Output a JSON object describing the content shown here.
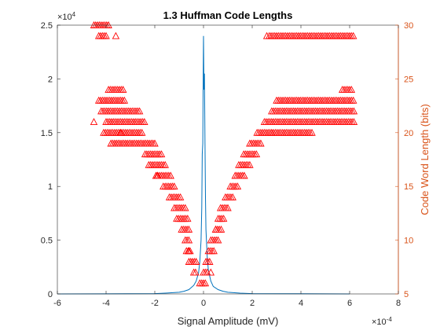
{
  "chart_data": {
    "type": "line+scatter",
    "title": "1.3 Huffman Code Lengths",
    "xlabel": "Signal Amplitude (mV)",
    "ylabel_left": "",
    "ylabel_right": "Code Word Length (bits)",
    "x_exponent_label": "×10",
    "x_exponent_power": "-4",
    "y_exponent_label": "×10",
    "y_exponent_power": "4",
    "xlim": [
      -6,
      8
    ],
    "ylim_left": [
      0,
      2.5
    ],
    "ylim_right": [
      5,
      30
    ],
    "x_ticks": [
      "-6",
      "-4",
      "-2",
      "0",
      "2",
      "4",
      "6",
      "8"
    ],
    "y_left_ticks": [
      "0",
      "0.5",
      "1",
      "1.5",
      "2",
      "2.5"
    ],
    "y_right_ticks": [
      "5",
      "10",
      "15",
      "20",
      "25",
      "30"
    ],
    "colors": {
      "histogram": "#0072bd",
      "codes": "#ff0000",
      "right_axis": "#d95319"
    },
    "histogram": {
      "x": [
        -6.0,
        -2.0,
        -1.5,
        -1.0,
        -0.8,
        -0.6,
        -0.4,
        -0.3,
        -0.2,
        -0.15,
        -0.1,
        -0.07,
        -0.05,
        -0.03,
        -0.01,
        0.0,
        0.02,
        0.04,
        0.06,
        0.08,
        0.1,
        0.15,
        0.2,
        0.3,
        0.4,
        0.6,
        0.8,
        1.0,
        1.5,
        2.0,
        6.0
      ],
      "y": [
        0.0,
        0.003,
        0.008,
        0.015,
        0.025,
        0.04,
        0.08,
        0.12,
        0.2,
        0.3,
        0.5,
        0.8,
        1.3,
        1.4,
        2.1,
        2.4,
        1.9,
        2.05,
        1.4,
        0.9,
        0.6,
        0.35,
        0.22,
        0.12,
        0.07,
        0.04,
        0.025,
        0.015,
        0.007,
        0.003,
        0.0
      ]
    },
    "codes": {
      "bands": [
        {
          "length": 6,
          "ranges": [
            [
              -0.15,
              0.1
            ]
          ]
        },
        {
          "length": 7,
          "ranges": [
            [
              -0.4,
              -0.3
            ],
            [
              0.0,
              0.15
            ]
          ]
        },
        {
          "length": 8,
          "ranges": [
            [
              -0.6,
              -0.3
            ],
            [
              0.1,
              0.3
            ]
          ]
        },
        {
          "length": 9,
          "ranges": [
            [
              -0.7,
              -0.55
            ],
            [
              0.2,
              0.45
            ]
          ]
        },
        {
          "length": 10,
          "ranges": [
            [
              -0.75,
              -0.6
            ],
            [
              0.3,
              0.6
            ]
          ]
        },
        {
          "length": 11,
          "ranges": [
            [
              -0.9,
              -0.6
            ],
            [
              0.5,
              0.75
            ]
          ]
        },
        {
          "length": 12,
          "ranges": [
            [
              -1.1,
              -0.65
            ],
            [
              0.6,
              0.85
            ]
          ]
        },
        {
          "length": 13,
          "ranges": [
            [
              -1.2,
              -0.75
            ],
            [
              0.7,
              1.05
            ]
          ]
        },
        {
          "length": 14,
          "ranges": [
            [
              -1.4,
              -0.95
            ],
            [
              0.9,
              1.25
            ]
          ]
        },
        {
          "length": 15,
          "ranges": [
            [
              -1.65,
              -1.15
            ],
            [
              1.1,
              1.45
            ]
          ]
        },
        {
          "length": 16,
          "ranges": [
            [
              -1.95,
              -1.3
            ],
            [
              1.3,
              1.7
            ]
          ]
        },
        {
          "length": 17,
          "ranges": [
            [
              -2.25,
              -1.55
            ],
            [
              1.45,
              1.95
            ]
          ]
        },
        {
          "length": 18,
          "ranges": [
            [
              -2.4,
              -1.7
            ],
            [
              1.65,
              2.2
            ]
          ]
        },
        {
          "length": 19,
          "ranges": [
            [
              -3.8,
              -2.0
            ],
            [
              1.9,
              2.4
            ]
          ]
        },
        {
          "length": 20,
          "ranges": [
            [
              -4.1,
              -2.5
            ],
            [
              2.2,
              4.5
            ]
          ]
        },
        {
          "length": 21,
          "ranges": [
            [
              -4.0,
              -2.4
            ],
            [
              2.5,
              6.2
            ]
          ]
        },
        {
          "length": 22,
          "ranges": [
            [
              -4.2,
              -2.6
            ],
            [
              2.8,
              6.2
            ]
          ]
        },
        {
          "length": 23,
          "ranges": [
            [
              -4.3,
              -3.2
            ],
            [
              3.0,
              6.2
            ]
          ]
        },
        {
          "length": 24,
          "ranges": [
            [
              -3.9,
              -3.3
            ],
            [
              5.7,
              6.1
            ]
          ]
        },
        {
          "length": 29,
          "ranges": [
            [
              -4.3,
              -4.0
            ],
            [
              2.7,
              6.2
            ]
          ]
        },
        {
          "length": 30,
          "ranges": [
            [
              -4.5,
              -3.9
            ]
          ]
        }
      ],
      "points": [
        [
          -4.5,
          21
        ],
        [
          -3.6,
          29
        ],
        [
          -3.4,
          20
        ],
        [
          -1.9,
          16
        ],
        [
          -0.6,
          9
        ],
        [
          0.3,
          7
        ],
        [
          0.5,
          11
        ],
        [
          2.6,
          29
        ],
        [
          2.8,
          20
        ]
      ]
    }
  }
}
